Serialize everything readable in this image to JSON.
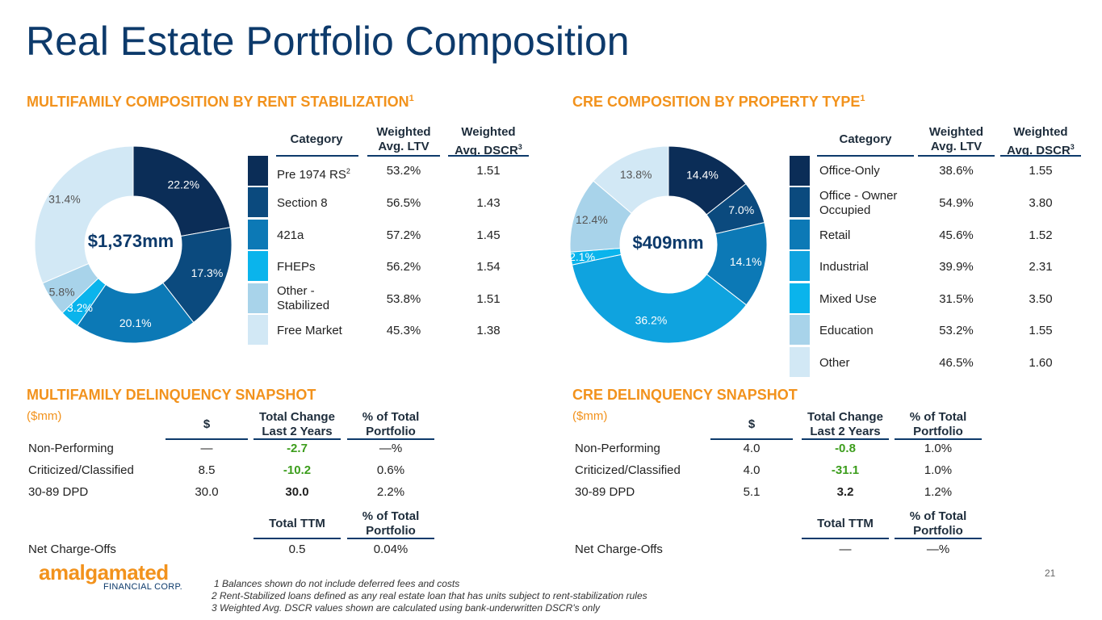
{
  "title": "Real Estate Portfolio Composition",
  "colors": {
    "navy": "#0b2d57",
    "shades": [
      "#0b2d57",
      "#0b4a7e",
      "#0c79b6",
      "#0fa3df",
      "#0ab4ec",
      "#a8d3ea",
      "#d2e8f5"
    ],
    "accent": "#f2921c",
    "green": "#3c9d1c"
  },
  "mf_comp": {
    "heading": "MULTIFAMILY COMPOSITION BY RENT STABILIZATION",
    "heading_sup": "1",
    "total": "$1,373mm",
    "headers": {
      "category": "Category",
      "ltv_1": "Weighted",
      "ltv_2": "Avg. LTV",
      "dscr_1": "Weighted",
      "dscr_2": "Avg. DSCR",
      "dscr_sup": "3"
    },
    "rows": [
      {
        "category": "Pre 1974 RS",
        "sup": "2",
        "ltv": "53.2%",
        "dscr": "1.51"
      },
      {
        "category": "Section 8",
        "sup": "",
        "ltv": "56.5%",
        "dscr": "1.43"
      },
      {
        "category": "421a",
        "sup": "",
        "ltv": "57.2%",
        "dscr": "1.45"
      },
      {
        "category": "FHEPs",
        "sup": "",
        "ltv": "56.2%",
        "dscr": "1.54"
      },
      {
        "category": "Other - Stabilized",
        "sup": "",
        "ltv": "53.8%",
        "dscr": "1.51"
      },
      {
        "category": "Free Market",
        "sup": "",
        "ltv": "45.3%",
        "dscr": "1.38"
      }
    ]
  },
  "cre_comp": {
    "heading": "CRE COMPOSITION BY PROPERTY TYPE",
    "heading_sup": "1",
    "total": "$409mm",
    "headers": {
      "category": "Category",
      "ltv_1": "Weighted",
      "ltv_2": "Avg. LTV",
      "dscr_1": "Weighted",
      "dscr_2": "Avg. DSCR",
      "dscr_sup": "3"
    },
    "rows": [
      {
        "category": "Office-Only",
        "ltv": "38.6%",
        "dscr": "1.55"
      },
      {
        "category": "Office - Owner Occupied",
        "ltv": "54.9%",
        "dscr": "3.80"
      },
      {
        "category": "Retail",
        "ltv": "45.6%",
        "dscr": "1.52"
      },
      {
        "category": "Industrial",
        "ltv": "39.9%",
        "dscr": "2.31"
      },
      {
        "category": "Mixed Use",
        "ltv": "31.5%",
        "dscr": "3.50"
      },
      {
        "category": "Education",
        "ltv": "53.2%",
        "dscr": "1.55"
      },
      {
        "category": "Other",
        "ltv": "46.5%",
        "dscr": "1.60"
      }
    ]
  },
  "chart_data": [
    {
      "type": "pie",
      "title": "Multifamily Composition by Rent Stabilization",
      "center_label": "$1,373mm",
      "categories": [
        "Pre 1974 RS",
        "Section 8",
        "421a",
        "FHEPs",
        "Other - Stabilized",
        "Free Market"
      ],
      "values": [
        22.2,
        17.3,
        20.1,
        3.2,
        5.8,
        31.4
      ],
      "labels": [
        "22.2%",
        "17.3%",
        "20.1%",
        "3.2%",
        "5.8%",
        "31.4%"
      ]
    },
    {
      "type": "pie",
      "title": "CRE Composition by Property Type",
      "center_label": "$409mm",
      "categories": [
        "Office-Only",
        "Office - Owner Occupied",
        "Retail",
        "Industrial",
        "Mixed Use",
        "Education",
        "Other"
      ],
      "values": [
        14.4,
        7.0,
        14.1,
        36.2,
        2.1,
        12.4,
        13.8
      ],
      "labels": [
        "14.4%",
        "7.0%",
        "14.1%",
        "36.2%",
        "2.1%",
        "12.4%",
        "13.8%"
      ]
    }
  ],
  "mf_delinq": {
    "heading": "MULTIFAMILY DELINQUENCY SNAPSHOT",
    "unit": "($mm)",
    "headers": {
      "dollar": "$",
      "chg_1": "Total Change",
      "chg_2": "Last 2 Years",
      "pct_1": "% of Total",
      "pct_2": "Portfolio"
    },
    "rows": [
      {
        "label": "Non-Performing",
        "dollar": "—",
        "change": "-2.7",
        "pct": "—%"
      },
      {
        "label": "Criticized/Classified",
        "dollar": "8.5",
        "change": "-10.2",
        "pct": "0.6%"
      },
      {
        "label": "30-89 DPD",
        "dollar": "30.0",
        "change": "30.0",
        "pct": "2.2%"
      }
    ],
    "ttm_headers": {
      "ttm": "Total TTM",
      "pct_1": "% of Total",
      "pct_2": "Portfolio"
    },
    "nco": {
      "label": "Net Charge-Offs",
      "ttm": "0.5",
      "pct": "0.04%"
    }
  },
  "cre_delinq": {
    "heading": "CRE DELINQUENCY SNAPSHOT",
    "unit": "($mm)",
    "headers": {
      "dollar": "$",
      "chg_1": "Total Change",
      "chg_2": "Last 2 Years",
      "pct_1": "% of Total",
      "pct_2": "Portfolio"
    },
    "rows": [
      {
        "label": "Non-Performing",
        "dollar": "4.0",
        "change": "-0.8",
        "pct": "1.0%"
      },
      {
        "label": "Criticized/Classified",
        "dollar": "4.0",
        "change": "-31.1",
        "pct": "1.0%"
      },
      {
        "label": "30-89 DPD",
        "dollar": "5.1",
        "change": "3.2",
        "pct": "1.2%"
      }
    ],
    "ttm_headers": {
      "ttm": "Total TTM",
      "pct_1": "% of Total",
      "pct_2": "Portfolio"
    },
    "nco": {
      "label": "Net Charge-Offs",
      "ttm": "—",
      "pct": "—%"
    }
  },
  "logo": {
    "name": "amalgamated",
    "sub": "FINANCIAL CORP."
  },
  "footnotes": [
    "1 Balances shown do not include deferred fees and costs",
    "2 Rent-Stabilized loans defined as any real estate loan that has units subject to rent-stabilization rules",
    "3 Weighted Avg. DSCR values shown are calculated using bank-underwritten DSCR's only"
  ],
  "page_number": "21"
}
